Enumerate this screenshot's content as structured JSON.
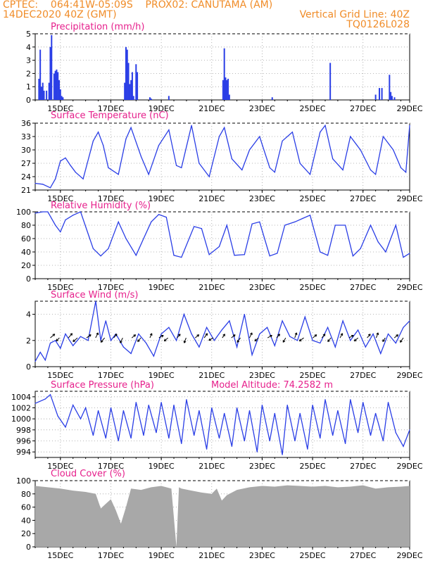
{
  "header": {
    "left_line1": "CPTEC:    064:41W-05:09S    PROX02: CANUTAMA (AM)",
    "left_line2": "14DEC2020 40Z (GMT)",
    "right_line2": "Vertical Grid Line: 40Z",
    "right_line3": "TQ0126L028"
  },
  "colors": {
    "title": "#e6208c",
    "header": "#f08c28",
    "line": "#2a3ee6",
    "cloud": "#a8a8a8",
    "grid": "#a0a0a0"
  },
  "x_tick_labels": [
    "15DEC",
    "17DEC",
    "19DEC",
    "21DEC",
    "23DEC",
    "25DEC",
    "27DEC",
    "29DEC"
  ],
  "chart_data": [
    {
      "type": "bar",
      "title": "Precipitation (mm/h)",
      "ylim": [
        0,
        5
      ],
      "yticks": [
        0,
        1,
        2,
        3,
        4,
        5
      ],
      "x_unit": "days since 14DEC2020 00Z",
      "x": [
        0.15,
        0.2,
        0.25,
        0.3,
        0.35,
        0.45,
        0.55,
        0.6,
        0.65,
        0.75,
        0.8,
        0.85,
        0.9,
        0.95,
        1.0,
        1.05,
        1.1,
        3.55,
        3.6,
        3.65,
        3.7,
        3.75,
        3.8,
        3.85,
        3.9,
        4.0,
        4.05,
        4.55,
        4.6,
        5.3,
        7.45,
        7.5,
        7.55,
        7.6,
        7.65,
        7.7,
        9.4,
        11.7,
        13.5,
        13.65,
        13.75,
        14.05,
        14.1,
        14.15,
        14.25
      ],
      "values": [
        1.6,
        3.8,
        1.0,
        1.3,
        0.7,
        0.7,
        1.3,
        4.0,
        4.9,
        2.0,
        2.2,
        2.3,
        2.1,
        1.5,
        0.8,
        0.3,
        0.2,
        1.3,
        4.0,
        3.8,
        2.8,
        1.2,
        1.5,
        2.1,
        0.3,
        2.7,
        2.1,
        0.2,
        0.1,
        0.3,
        1.5,
        3.9,
        1.7,
        1.5,
        1.6,
        0.4,
        0.2,
        2.8,
        0.4,
        0.9,
        0.9,
        1.9,
        0.6,
        0.3,
        0.2
      ]
    },
    {
      "type": "line",
      "title": "Surface Temperature (nC)",
      "ylim": [
        21,
        36
      ],
      "yticks": [
        21,
        24,
        27,
        30,
        33,
        36
      ],
      "x_unit": "days since 14DEC2020 00Z",
      "x": [
        0.0,
        0.3,
        0.6,
        0.8,
        1.0,
        1.2,
        1.4,
        1.6,
        1.9,
        2.3,
        2.5,
        2.7,
        2.9,
        3.3,
        3.6,
        3.8,
        4.2,
        4.5,
        4.9,
        5.3,
        5.6,
        5.8,
        6.2,
        6.5,
        6.9,
        7.3,
        7.5,
        7.8,
        8.2,
        8.5,
        8.9,
        9.3,
        9.5,
        9.8,
        10.2,
        10.5,
        10.9,
        11.3,
        11.5,
        11.8,
        12.2,
        12.5,
        12.9,
        13.3,
        13.5,
        13.8,
        14.2,
        14.5,
        14.7,
        14.85
      ],
      "values": [
        22.5,
        22.3,
        21.5,
        23.5,
        27.5,
        28.2,
        26.5,
        25.0,
        23.5,
        32.0,
        34.0,
        31.0,
        26.0,
        24.5,
        32.5,
        35.0,
        28.5,
        24.5,
        31.0,
        34.5,
        26.5,
        26.0,
        35.5,
        27.0,
        24.0,
        33.0,
        35.0,
        28.0,
        25.5,
        30.0,
        33.0,
        26.0,
        25.0,
        32.0,
        34.0,
        27.0,
        24.5,
        34.0,
        35.5,
        28.0,
        25.5,
        33.0,
        30.0,
        25.5,
        24.5,
        33.0,
        30.0,
        26.0,
        25.0,
        35.5
      ]
    },
    {
      "type": "line",
      "title": "Relative Humidity (%)",
      "ylim": [
        0,
        100
      ],
      "yticks": [
        0,
        20,
        40,
        60,
        80,
        100
      ],
      "x_unit": "days since 14DEC2020 00Z",
      "x": [
        0.0,
        0.3,
        0.5,
        0.8,
        1.0,
        1.2,
        1.5,
        1.8,
        2.3,
        2.6,
        2.9,
        3.3,
        3.6,
        4.0,
        4.3,
        4.6,
        4.9,
        5.2,
        5.5,
        5.8,
        6.3,
        6.6,
        6.9,
        7.3,
        7.6,
        7.9,
        8.3,
        8.6,
        8.9,
        9.3,
        9.6,
        9.9,
        10.3,
        10.6,
        10.9,
        11.3,
        11.6,
        11.9,
        12.3,
        12.6,
        12.9,
        13.3,
        13.6,
        13.9,
        14.3,
        14.6,
        14.85
      ],
      "values": [
        98,
        100,
        100,
        80,
        70,
        88,
        95,
        100,
        45,
        34,
        45,
        85,
        60,
        35,
        60,
        85,
        96,
        92,
        35,
        32,
        78,
        75,
        36,
        48,
        80,
        35,
        36,
        82,
        85,
        34,
        38,
        80,
        85,
        90,
        95,
        40,
        35,
        80,
        80,
        34,
        45,
        80,
        55,
        40,
        80,
        32,
        38
      ]
    },
    {
      "type": "line",
      "title": "Surface Wind (m/s)",
      "ylim": [
        0,
        5
      ],
      "yticks": [
        0,
        2,
        4
      ],
      "x_unit": "days since 14DEC2020 00Z",
      "x": [
        0.0,
        0.2,
        0.4,
        0.6,
        0.8,
        1.0,
        1.2,
        1.5,
        1.8,
        2.1,
        2.4,
        2.6,
        2.8,
        3.0,
        3.2,
        3.5,
        3.8,
        4.1,
        4.4,
        4.7,
        5.0,
        5.3,
        5.6,
        5.9,
        6.2,
        6.5,
        6.8,
        7.1,
        7.4,
        7.7,
        8.0,
        8.3,
        8.6,
        8.9,
        9.2,
        9.5,
        9.8,
        10.1,
        10.4,
        10.7,
        11.0,
        11.3,
        11.6,
        11.9,
        12.2,
        12.5,
        12.8,
        13.1,
        13.4,
        13.7,
        14.0,
        14.3,
        14.6,
        14.85
      ],
      "values": [
        0.4,
        1.1,
        0.5,
        1.8,
        2.0,
        1.4,
        2.5,
        1.6,
        2.3,
        2.0,
        5.0,
        2.0,
        3.5,
        2.0,
        2.5,
        1.5,
        1.0,
        2.5,
        1.8,
        0.8,
        2.5,
        3.0,
        2.0,
        4.0,
        2.5,
        1.5,
        3.0,
        2.0,
        2.8,
        3.5,
        1.5,
        4.0,
        0.9,
        2.5,
        3.0,
        1.6,
        3.5,
        2.3,
        2.0,
        3.8,
        2.0,
        1.8,
        3.0,
        1.5,
        3.5,
        2.0,
        2.8,
        1.5,
        2.5,
        1.0,
        2.5,
        1.8,
        3.0,
        3.5
      ],
      "arrows_u": [
        0.7,
        -0.5,
        0.6,
        -0.7,
        0.7,
        0.4,
        -0.6,
        0.5,
        -0.4,
        0.6,
        -0.5,
        0.3,
        0.7,
        -0.6,
        0.5,
        -0.3,
        0.6,
        0.5,
        -0.7,
        0.4,
        0.6,
        -0.5,
        0.4,
        -0.6,
        0.7,
        0.5,
        -0.4,
        0.3,
        -0.7,
        0.6,
        0.5,
        -0.5,
        0.4,
        0.7,
        -0.6,
        0.5,
        0.3,
        -0.4,
        0.6,
        -0.5
      ],
      "arrows_v": [
        0.6,
        -0.5,
        0.7,
        -0.6,
        0.5,
        0.8,
        -0.7,
        0.6,
        -0.8,
        0.5,
        -0.6,
        0.7,
        0.4,
        -0.5,
        0.6,
        -0.8,
        0.5,
        0.7,
        -0.4,
        0.6,
        0.5,
        -0.7,
        0.8,
        -0.5,
        0.4,
        0.6,
        -0.7,
        0.8,
        -0.5,
        0.5,
        0.6,
        -0.6,
        0.7,
        0.4,
        -0.5,
        0.6,
        0.8,
        -0.6,
        0.5,
        -0.7
      ]
    },
    {
      "type": "line",
      "title": "Surface Pressure (hPa)",
      "subtitle": "Model Altitude: 74.2582 m",
      "ylim": [
        993,
        1005
      ],
      "yticks": [
        994,
        996,
        998,
        1000,
        1002,
        1004
      ],
      "x_unit": "days since 14DEC2020 00Z",
      "x": [
        0.0,
        0.4,
        0.6,
        0.9,
        1.2,
        1.5,
        1.8,
        2.0,
        2.3,
        2.5,
        2.8,
        3.0,
        3.3,
        3.5,
        3.8,
        4.0,
        4.3,
        4.5,
        4.8,
        5.0,
        5.3,
        5.5,
        5.8,
        6.0,
        6.3,
        6.5,
        6.8,
        7.0,
        7.3,
        7.5,
        7.8,
        8.0,
        8.3,
        8.5,
        8.8,
        9.0,
        9.3,
        9.5,
        9.8,
        10.0,
        10.3,
        10.5,
        10.8,
        11.0,
        11.3,
        11.5,
        11.8,
        12.0,
        12.3,
        12.5,
        12.8,
        13.0,
        13.3,
        13.5,
        13.8,
        14.0,
        14.3,
        14.6,
        14.85
      ],
      "values": [
        1002.8,
        1003.6,
        1004.4,
        1000.5,
        998.5,
        1002.5,
        1000.0,
        1002.0,
        997.0,
        1001.5,
        996.5,
        1002.0,
        996.0,
        1001.5,
        996.5,
        1003.0,
        997.0,
        1002.5,
        997.5,
        1003.0,
        996.5,
        1002.5,
        995.5,
        1003.5,
        997.0,
        1001.5,
        994.5,
        1002.0,
        996.5,
        1001.0,
        995.0,
        1002.0,
        996.0,
        1001.5,
        994.0,
        1002.5,
        996.0,
        1001.0,
        993.5,
        1002.5,
        996.0,
        1001.0,
        994.5,
        1002.5,
        996.5,
        1003.5,
        997.0,
        1001.5,
        995.5,
        1003.5,
        997.5,
        1003.0,
        997.0,
        1001.0,
        996.0,
        1003.0,
        997.5,
        995.0,
        998.0
      ]
    },
    {
      "type": "area",
      "title": "Cloud Cover (%)",
      "ylim": [
        0,
        100
      ],
      "yticks": [
        0,
        20,
        40,
        60,
        80,
        100
      ],
      "x_unit": "days since 14DEC2020 00Z",
      "x": [
        0.0,
        0.5,
        1.0,
        1.5,
        2.0,
        2.4,
        2.6,
        2.8,
        3.0,
        3.2,
        3.4,
        3.6,
        3.8,
        4.2,
        4.6,
        5.0,
        5.4,
        5.6,
        5.7,
        5.8,
        6.2,
        6.6,
        7.0,
        7.2,
        7.4,
        7.6,
        8.0,
        8.5,
        9.0,
        9.5,
        10.0,
        10.5,
        11.0,
        11.5,
        12.0,
        12.5,
        13.0,
        13.5,
        14.0,
        14.5,
        14.85
      ],
      "values": [
        92,
        90,
        88,
        85,
        83,
        80,
        58,
        65,
        72,
        55,
        35,
        60,
        88,
        86,
        90,
        92,
        88,
        0,
        90,
        88,
        85,
        82,
        80,
        88,
        70,
        78,
        86,
        90,
        92,
        91,
        93,
        92,
        91,
        92,
        90,
        91,
        93,
        88,
        90,
        91,
        92
      ]
    }
  ]
}
